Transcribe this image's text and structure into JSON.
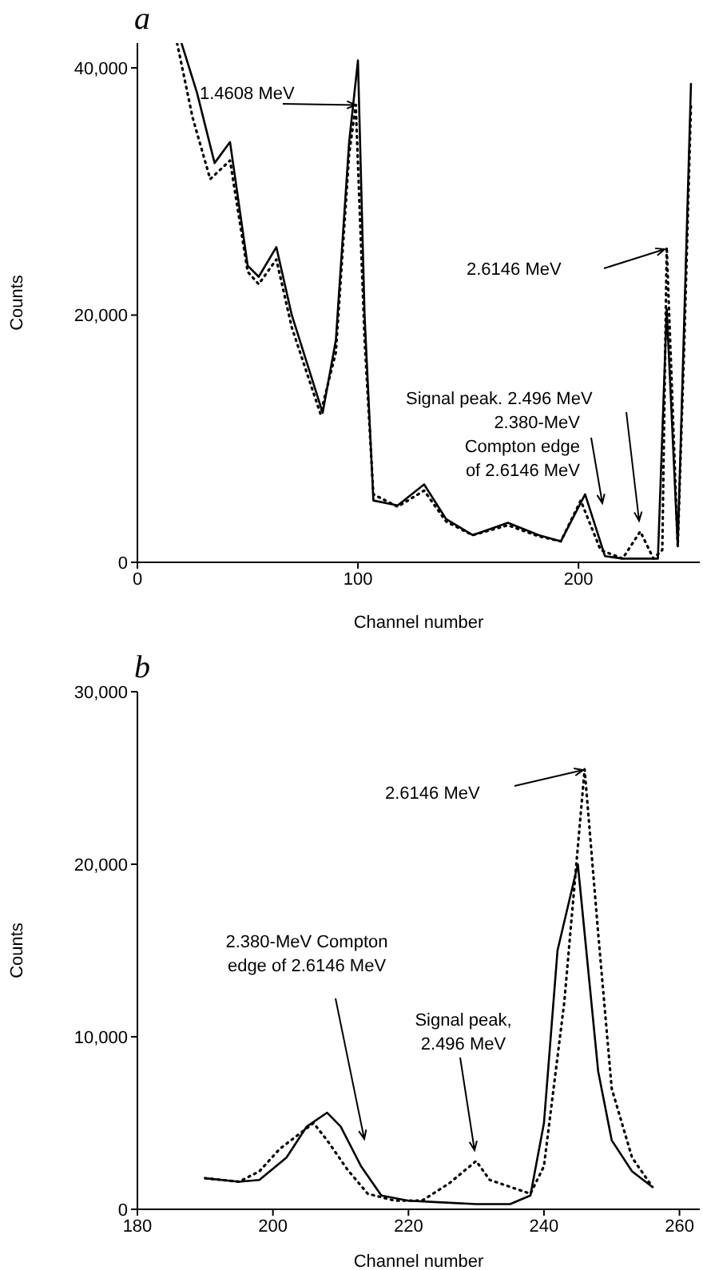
{
  "chart_data": [
    {
      "type": "line",
      "title": "a",
      "xlabel": "Channel number",
      "ylabel": "Counts",
      "xlim": [
        0,
        255
      ],
      "xticks": [
        0,
        100,
        200
      ],
      "ylim": [
        0,
        42000
      ],
      "yticks": [
        0,
        {
          "value": 20000,
          "label": "20,000"
        },
        {
          "value": 40000,
          "label": "40,000"
        }
      ],
      "series": [
        {
          "color": "#000000",
          "line_style": "solid",
          "x": [
            20,
            27,
            35,
            42,
            50,
            55,
            63,
            70,
            84,
            90,
            96,
            100,
            103,
            107,
            118,
            130,
            140,
            152,
            168,
            182,
            192,
            203,
            212,
            220,
            236,
            240,
            245,
            248,
            251
          ],
          "values": [
            42000,
            38000,
            32300,
            34000,
            24000,
            23100,
            25500,
            20000,
            12100,
            18000,
            34000,
            40600,
            20000,
            5000,
            4600,
            6300,
            3500,
            2200,
            3200,
            2200,
            1700,
            5500,
            500,
            300,
            300,
            20500,
            1300,
            20000,
            38700
          ]
        },
        {
          "color": "#000000",
          "line_style": "dotted",
          "x": [
            18,
            25,
            33,
            42,
            50,
            55,
            63,
            70,
            83,
            90,
            96,
            99,
            103,
            107,
            118,
            130,
            140,
            152,
            168,
            182,
            192,
            201,
            210,
            220,
            228,
            234,
            238,
            240,
            245,
            248,
            251
          ],
          "values": [
            42000,
            36000,
            31000,
            32500,
            23500,
            22500,
            24500,
            19000,
            12000,
            17000,
            33000,
            37000,
            18000,
            5500,
            4500,
            5800,
            3300,
            2200,
            3000,
            2100,
            1700,
            5000,
            1000,
            300,
            2500,
            300,
            1000,
            25500,
            1300,
            18000,
            37000
          ]
        }
      ],
      "annotations": [
        {
          "text": "1.4608 MeV",
          "x": 99,
          "y": 37000
        },
        "2.6146 MeV",
        "Signal peak. 2.496 MeV",
        "2.380-MeV\nCompton edge\nof 2.6146 MeV"
      ]
    },
    {
      "type": "line",
      "title": "b",
      "xlabel": "Channel number",
      "ylabel": "Counts",
      "xlim": [
        180,
        263
      ],
      "xticks": [
        180,
        200,
        220,
        240,
        260
      ],
      "ylim": [
        0,
        30000
      ],
      "yticks": [
        0,
        {
          "value": 10000,
          "label": "10,000"
        },
        {
          "value": 20000,
          "label": "20,000"
        },
        {
          "value": 30000,
          "label": "30,000"
        }
      ],
      "series": [
        {
          "color": "#000000",
          "line_style": "solid",
          "x": [
            190,
            195,
            198,
            202,
            205,
            208,
            210,
            213,
            216,
            220,
            225,
            230,
            235,
            238,
            240,
            242,
            245,
            246,
            248,
            250,
            253,
            256
          ],
          "values": [
            1800,
            1600,
            1700,
            3000,
            4800,
            5600,
            4800,
            2500,
            800,
            500,
            400,
            300,
            300,
            800,
            5000,
            15000,
            20000,
            16000,
            8000,
            4000,
            2200,
            1300
          ]
        },
        {
          "color": "#000000",
          "line_style": "dotted",
          "x": [
            190,
            195,
            198,
            201,
            206,
            208,
            211,
            214,
            218,
            222,
            226,
            230,
            232,
            235,
            238,
            240,
            243,
            246,
            248,
            250,
            253,
            256
          ],
          "values": [
            1800,
            1600,
            2200,
            3500,
            5000,
            4000,
            2300,
            900,
            500,
            500,
            1500,
            2800,
            1700,
            1300,
            900,
            2500,
            12000,
            25500,
            16000,
            7000,
            3000,
            1300
          ]
        }
      ],
      "annotations": [
        "2.6146 MeV",
        "2.380-MeV Compton\nedge of 2.6146 MeV",
        "Signal peak,\n2.496 MeV"
      ]
    }
  ]
}
